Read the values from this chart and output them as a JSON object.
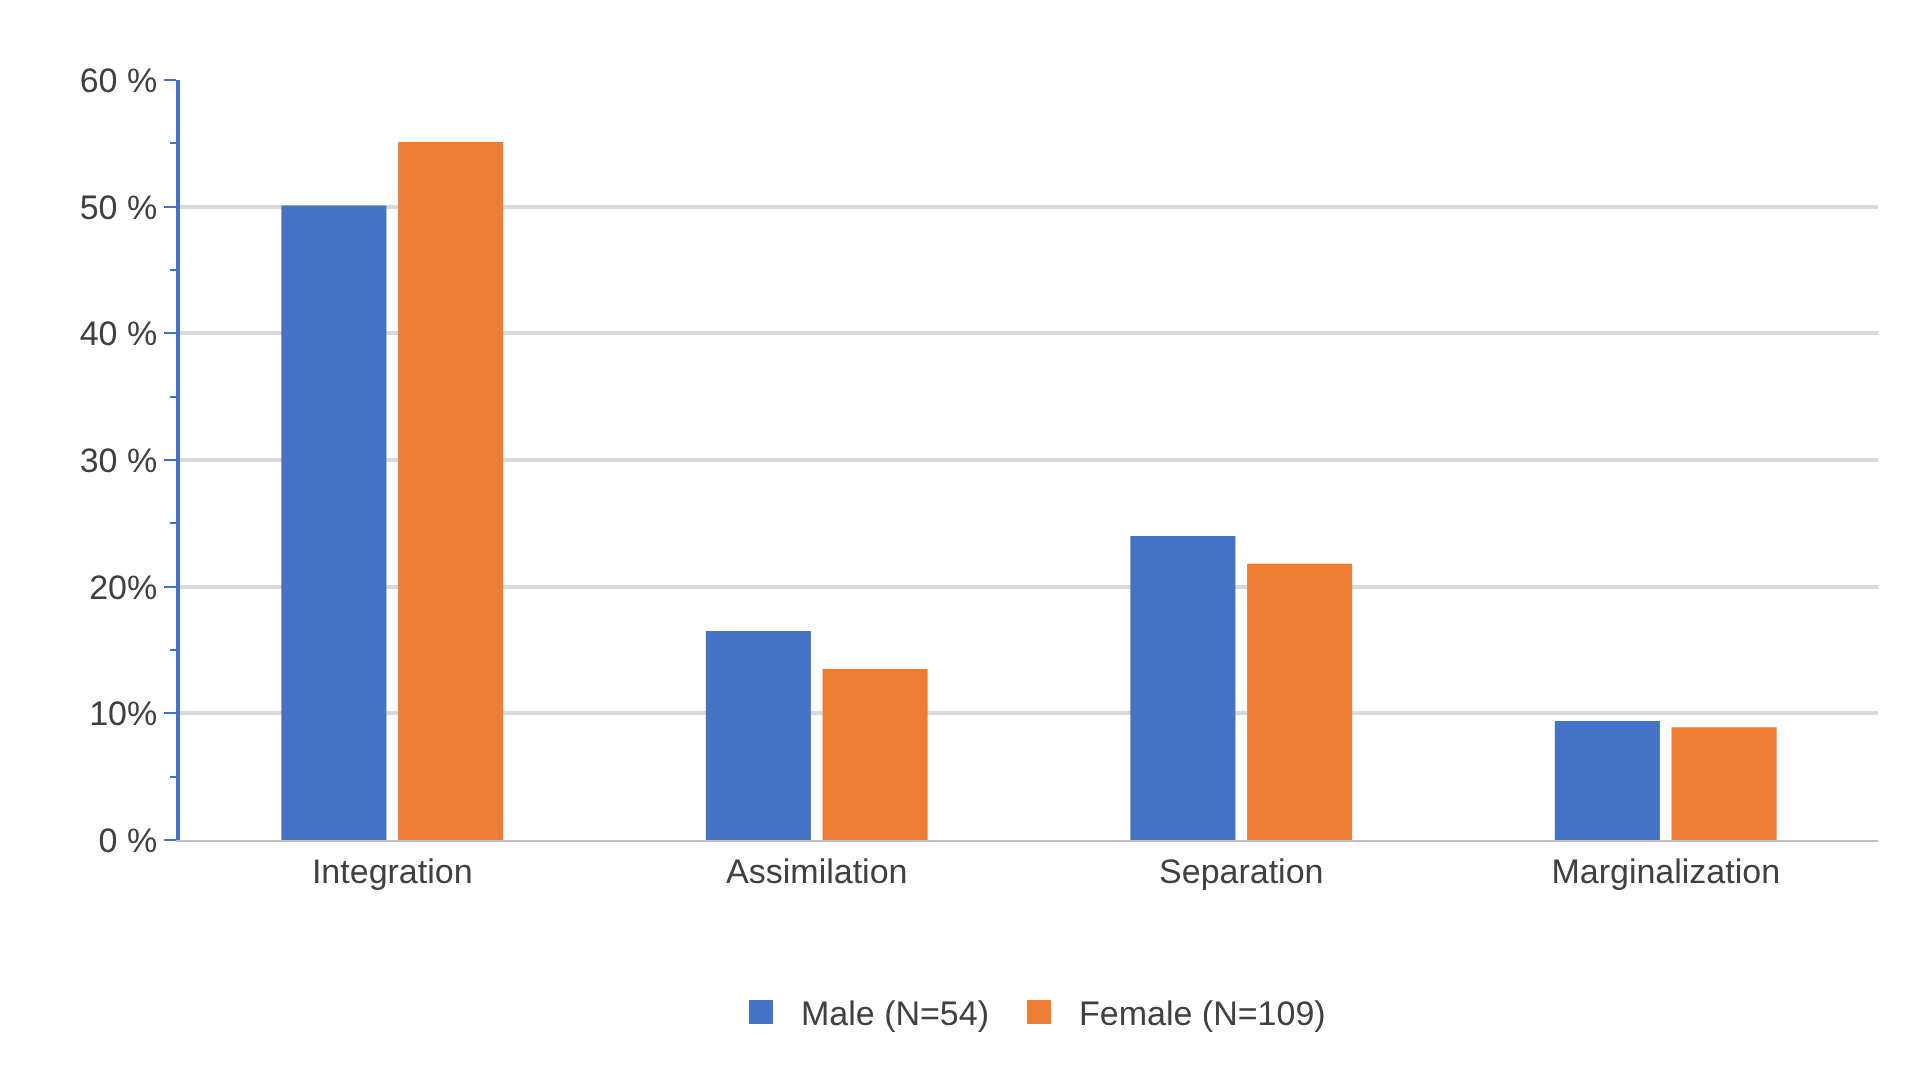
{
  "chart_data": {
    "type": "bar",
    "categories": [
      "Integration",
      "Assimilation",
      "Separation",
      "Marginalization"
    ],
    "series": [
      {
        "name": "Male (N=54)",
        "color": "#4472c4",
        "values": [
          50.1,
          16.5,
          24.0,
          9.4
        ]
      },
      {
        "name": "Female (N=109)",
        "color": "#ed7d31",
        "values": [
          55.1,
          13.5,
          21.8,
          8.9
        ]
      }
    ],
    "ylim": [
      0,
      60
    ],
    "yticks": [
      {
        "value": 0,
        "label": "0 %"
      },
      {
        "value": 10,
        "label": "10%"
      },
      {
        "value": 20,
        "label": "20%"
      },
      {
        "value": 30,
        "label": "30 %"
      },
      {
        "value": 40,
        "label": "40 %"
      },
      {
        "value": 50,
        "label": "50 %"
      },
      {
        "value": 60,
        "label": "60 %"
      }
    ],
    "grid": "y",
    "legend": "bottom"
  }
}
